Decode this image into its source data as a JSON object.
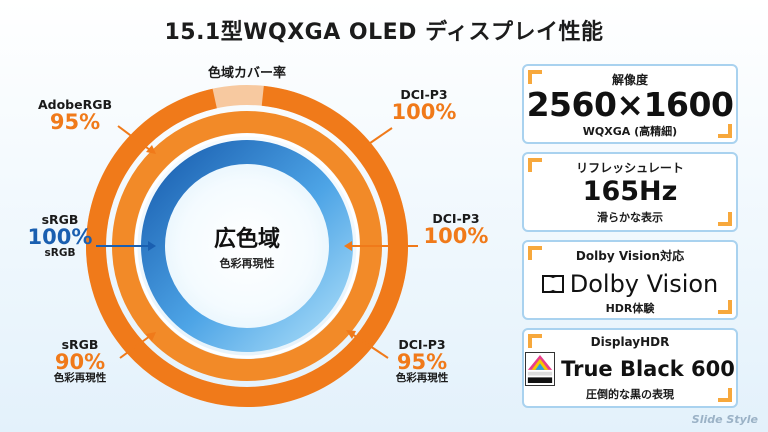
{
  "title": "15.1型WQXGA OLED ディスプレイ性能",
  "ring_title": "色域カバー率",
  "center": {
    "main": "広色域",
    "sub": "色彩再現性"
  },
  "labels": {
    "adobe": {
      "name": "AdobeRGB",
      "value": "95%"
    },
    "dci_top": {
      "name": "DCI-P3",
      "value": "100%"
    },
    "dci_mid": {
      "name": "DCI-P3",
      "value": "100%"
    },
    "srgb_mid": {
      "name": "sRGB",
      "value": "100%",
      "sub": "sRGB"
    },
    "srgb_bot": {
      "name": "sRGB",
      "value": "90%",
      "sub": "色彩再現性"
    },
    "dci_bot": {
      "name": "DCI-P3",
      "value": "95%",
      "sub": "色彩再現性"
    }
  },
  "cards": [
    {
      "head": "解像度",
      "big": "2560×1600",
      "sub": "WQXGA (高精細)"
    },
    {
      "head": "リフレッシュレート",
      "big": "165Hz",
      "sub": "滑らかな表示"
    },
    {
      "head": "Dolby Vision対応",
      "logo": "Dolby Vision",
      "sub": "HDR体験"
    },
    {
      "head": "DisplayHDR",
      "logo_small": "VESA DisplayHDR True Black",
      "big": "True Black 600",
      "sub": "圧倒的な黒の表現"
    }
  ],
  "watermark": "Slide Style",
  "colors": {
    "orange": "#f07a1a",
    "orange_light": "#f7a83c",
    "blue": "#1a5fb0",
    "light_blue": "#8fd0f5",
    "card_border": "#a9d2ef"
  }
}
